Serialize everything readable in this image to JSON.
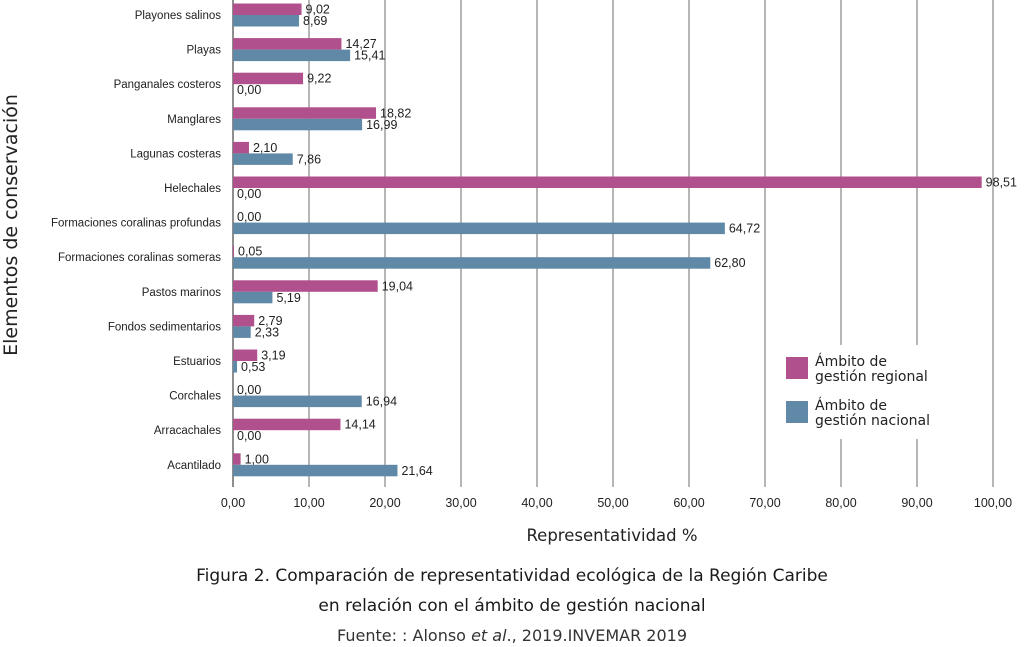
{
  "chart_data": {
    "type": "bar",
    "orientation": "horizontal",
    "categories": [
      "Playones salinos",
      "Playas",
      "Panganales costeros",
      "Manglares",
      "Lagunas costeras",
      "Helechales",
      "Formaciones coralinas profundas",
      "Formaciones coralinas someras",
      "Pastos marinos",
      "Fondos sedimentarios",
      "Estuarios",
      "Corchales",
      "Arracachales",
      "Acantilado"
    ],
    "series": [
      {
        "name": "Ámbito de gestión regional",
        "color": "#b0508c",
        "values": [
          9.02,
          14.27,
          9.22,
          18.82,
          2.1,
          98.51,
          0.0,
          0.05,
          19.04,
          2.79,
          3.19,
          0.0,
          14.14,
          1.0
        ],
        "labels": [
          "9,02",
          "14,27",
          "9,22",
          "18,82",
          "2,10",
          "98,51",
          "0,00",
          "0,05",
          "19,04",
          "2,79",
          "3,19",
          "0,00",
          "14,14",
          "1,00"
        ]
      },
      {
        "name": "Ámbito de gestión nacional",
        "color": "#5f89a6",
        "values": [
          8.69,
          15.41,
          0.0,
          16.99,
          7.86,
          0.0,
          64.72,
          62.8,
          5.19,
          2.33,
          0.53,
          16.94,
          0.0,
          21.64
        ],
        "labels": [
          "8,69",
          "15,41",
          "0,00",
          "16,99",
          "7,86",
          "0,00",
          "64,72",
          "62,80",
          "5,19",
          "2,33",
          "0,53",
          "16,94",
          "0,00",
          "21,64"
        ]
      }
    ],
    "xlim": [
      0,
      100
    ],
    "xticks": [
      0,
      10,
      20,
      30,
      40,
      50,
      60,
      70,
      80,
      90,
      100
    ],
    "xtick_labels": [
      "0,00",
      "10,00",
      "20,00",
      "30,00",
      "40,00",
      "50,00",
      "60,00",
      "70,00",
      "80,00",
      "90,00",
      "100,00"
    ],
    "xlabel": "Representatividad %",
    "ylabel": "Elementos de conservación",
    "legend_position": "right",
    "grid": "vertical",
    "legend_lines": [
      [
        "Ámbito de",
        "gestión regional"
      ],
      [
        "Ámbito de",
        "gestión nacional"
      ]
    ]
  },
  "caption": {
    "line1": "Figura 2. Comparación de representatividad ecológica de la Región Caribe",
    "line2": "en relación con el ámbito de gestión nacional",
    "source_prefix": "Fuente: : Alonso ",
    "source_em": "et al",
    "source_suffix": "., 2019.INVEMAR 2019"
  }
}
